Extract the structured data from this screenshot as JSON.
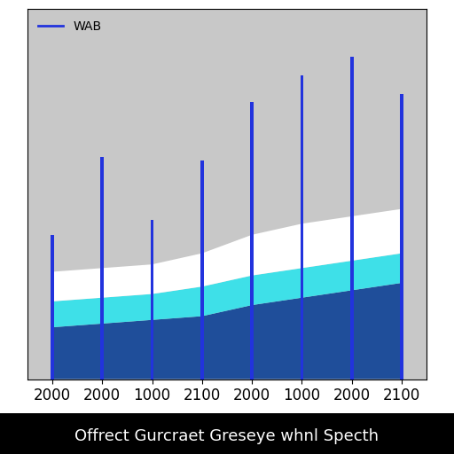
{
  "chart_data": {
    "type": "area",
    "title": "Offrect Gurcraet Greseye whnl Specth",
    "categories": [
      "2000",
      "2000",
      "1000",
      "2100",
      "2000",
      "1000",
      "2000",
      "2100"
    ],
    "stacked": true,
    "grid": false,
    "legend": "upper left",
    "tick_labels": "x",
    "ylim": [
      0,
      100
    ],
    "series": [
      {
        "type": "area",
        "color": "#1f4e9a",
        "values": [
          14,
          15,
          16,
          17,
          20,
          22,
          24,
          26
        ]
      },
      {
        "type": "area",
        "color": "#3ee0e8",
        "values": [
          7,
          7,
          7,
          8,
          8,
          8,
          8,
          8
        ]
      },
      {
        "type": "area",
        "color": "#ffffff",
        "values": [
          8,
          8,
          8,
          9,
          11,
          12,
          12,
          12
        ]
      },
      {
        "type": "bar",
        "name": "WAB",
        "color": "#2233dd",
        "values": [
          39,
          60,
          43,
          59,
          75,
          82,
          87,
          77
        ]
      }
    ]
  }
}
